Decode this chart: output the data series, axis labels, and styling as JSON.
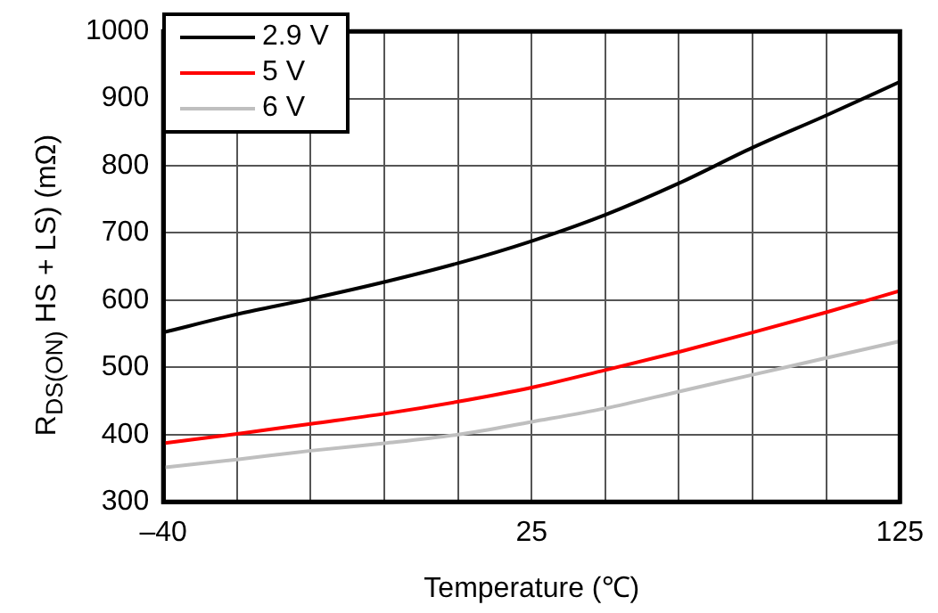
{
  "chart_data": {
    "type": "line",
    "xlabel": "Temperature (℃)",
    "ylabel": "R$_{DS(ON)}$ HS + LS) (mΩ)",
    "categories": [
      "–40",
      null,
      null,
      null,
      null,
      "25",
      null,
      null,
      null,
      null,
      "125"
    ],
    "series": [
      {
        "name": "2.9 V",
        "color": "#000000",
        "values": [
          552,
          579,
          602,
          627,
          655,
          688,
          727,
          774,
          827,
          875,
          925
        ]
      },
      {
        "name": "5 V",
        "color": "#ff0000",
        "values": [
          387,
          401,
          416,
          431,
          449,
          470,
          496,
          523,
          552,
          582,
          614
        ]
      },
      {
        "name": "6 V",
        "color": "#bfbfbf",
        "values": [
          351,
          363,
          376,
          387,
          400,
          419,
          439,
          464,
          489,
          514,
          539
        ]
      }
    ],
    "ylim": [
      300,
      1000
    ],
    "yticks": [
      300,
      400,
      500,
      600,
      700,
      800,
      900,
      1000
    ],
    "grid": true,
    "legend": "top left",
    "marker": "none",
    "line_style": "solid"
  }
}
